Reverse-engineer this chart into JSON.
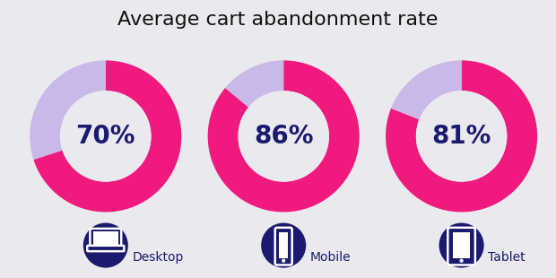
{
  "title": "Average cart abandonment rate",
  "title_fontsize": 16,
  "title_color": "#111111",
  "background_color": "#eaeaee",
  "donut_color_main": "#f0197d",
  "donut_color_secondary": "#c9b8e8",
  "center_color": "#eaeaee",
  "text_color": "#1a1a6e",
  "charts": [
    {
      "label": "Desktop",
      "value": 70,
      "icon": "desktop"
    },
    {
      "label": "Mobile",
      "value": 86,
      "icon": "mobile"
    },
    {
      "label": "Tablet",
      "value": 81,
      "icon": "tablet"
    }
  ],
  "percentage_fontsize": 20,
  "label_fontsize": 10,
  "icon_bg_color": "#1a1a6e",
  "icon_color": "#ffffff"
}
